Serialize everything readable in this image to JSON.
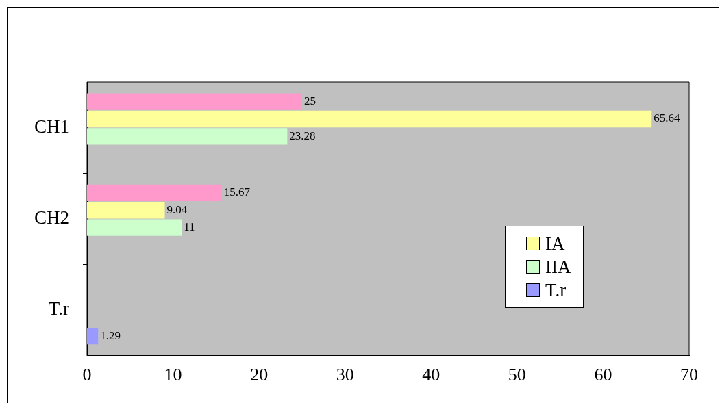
{
  "chart_data": {
    "type": "bar",
    "orientation": "horizontal",
    "categories": [
      "CH1",
      "CH2",
      "T.r"
    ],
    "series": [
      {
        "color": "#ff99cc",
        "values": [
          25,
          15.67,
          null
        ]
      },
      {
        "name": "IA",
        "color": "#ffff99",
        "values": [
          65.64,
          9.04,
          null
        ]
      },
      {
        "name": "IIA",
        "color": "#ccffcc",
        "values": [
          23.28,
          11,
          null
        ]
      },
      {
        "name": "T.r",
        "color": "#9999ff",
        "values": [
          null,
          null,
          1.29
        ]
      }
    ],
    "xlim": [
      0,
      70
    ],
    "xticks": [
      0,
      10,
      20,
      30,
      40,
      50,
      60,
      70
    ],
    "grid": false,
    "data_labels": true,
    "legend": "bottom right"
  }
}
